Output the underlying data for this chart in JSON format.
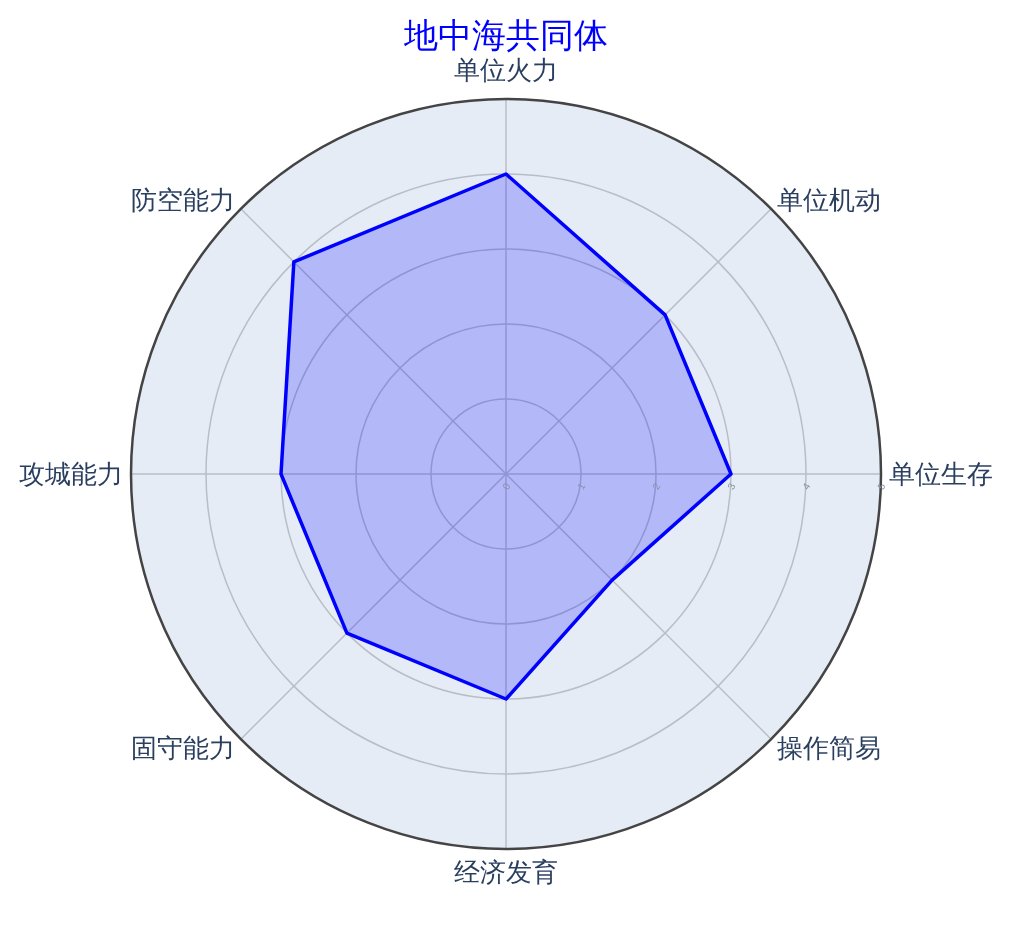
{
  "chart_data": {
    "type": "radar",
    "title": "地中海共同体",
    "categories": [
      "单位火力",
      "单位机动",
      "单位生存",
      "操作简易",
      "经济发育",
      "固守能力",
      "攻城能力",
      "防空能力"
    ],
    "series": [
      {
        "color": "#0000ff",
        "values": [
          4,
          3,
          3,
          2,
          3,
          3,
          3,
          4
        ]
      }
    ],
    "ylim": [
      0,
      5
    ],
    "yticks": [
      0,
      1,
      2,
      3,
      4,
      5
    ],
    "grid": true
  }
}
